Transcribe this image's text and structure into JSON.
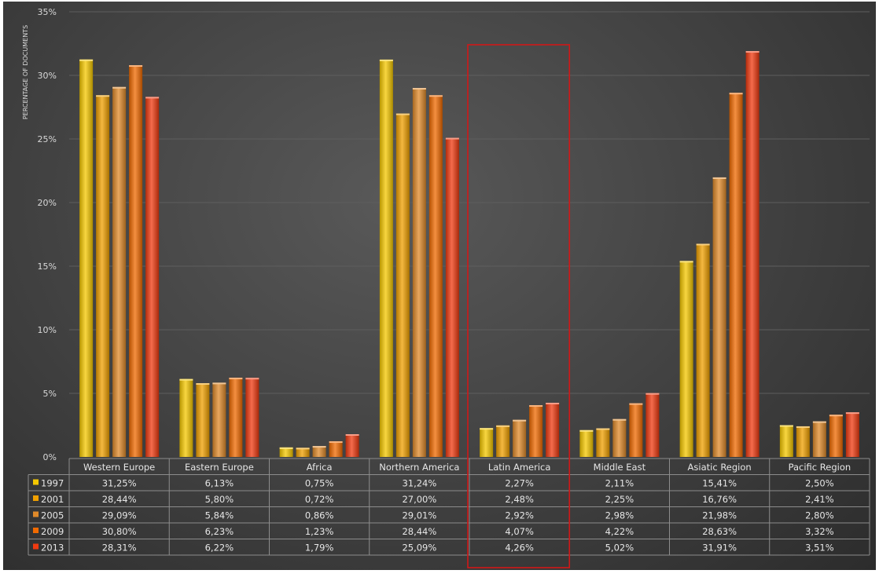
{
  "chart_data": {
    "type": "bar",
    "title": "",
    "xlabel": "",
    "ylabel": "PERCENTAGE OF DOCUMENTS",
    "ylim": [
      0,
      35
    ],
    "yticks": [
      "0%",
      "5%",
      "10%",
      "15%",
      "20%",
      "25%",
      "30%",
      "35%"
    ],
    "grid": true,
    "legend": "table-left",
    "categories": [
      "Western Europe",
      "Eastern Europe",
      "Africa",
      "Northern America",
      "Latin America",
      "Middle East",
      "Asiatic Region",
      "Pacific Region"
    ],
    "highlighted_category": "Latin America",
    "series": [
      {
        "name": "1997",
        "color": "#f5c800",
        "values": [
          31.25,
          6.13,
          0.75,
          31.24,
          2.27,
          2.11,
          15.41,
          2.5
        ],
        "labels": [
          "31,25%",
          "6,13%",
          "0,75%",
          "31,24%",
          "2,27%",
          "2,11%",
          "15,41%",
          "2,50%"
        ]
      },
      {
        "name": "2001",
        "color": "#f0a000",
        "values": [
          28.44,
          5.8,
          0.72,
          27.0,
          2.48,
          2.25,
          16.76,
          2.41
        ],
        "labels": [
          "28,44%",
          "5,80%",
          "0,72%",
          "27,00%",
          "2,48%",
          "2,25%",
          "16,76%",
          "2,41%"
        ]
      },
      {
        "name": "2005",
        "color": "#e08a2a",
        "values": [
          29.09,
          5.84,
          0.86,
          29.01,
          2.92,
          2.98,
          21.98,
          2.8
        ],
        "labels": [
          "29,09%",
          "5,84%",
          "0,86%",
          "29,01%",
          "2,92%",
          "2,98%",
          "21,98%",
          "2,80%"
        ]
      },
      {
        "name": "2009",
        "color": "#f06a00",
        "values": [
          30.8,
          6.23,
          1.23,
          28.44,
          4.07,
          4.22,
          28.63,
          3.32
        ],
        "labels": [
          "30,80%",
          "6,23%",
          "1,23%",
          "28,44%",
          "4,07%",
          "4,22%",
          "28,63%",
          "3,32%"
        ]
      },
      {
        "name": "2013",
        "color": "#f03a10",
        "values": [
          28.31,
          6.22,
          1.79,
          25.09,
          4.26,
          5.02,
          31.91,
          3.51
        ],
        "labels": [
          "28,31%",
          "6,22%",
          "1,79%",
          "25,09%",
          "4,26%",
          "5,02%",
          "31,91%",
          "3,51%"
        ]
      }
    ]
  }
}
